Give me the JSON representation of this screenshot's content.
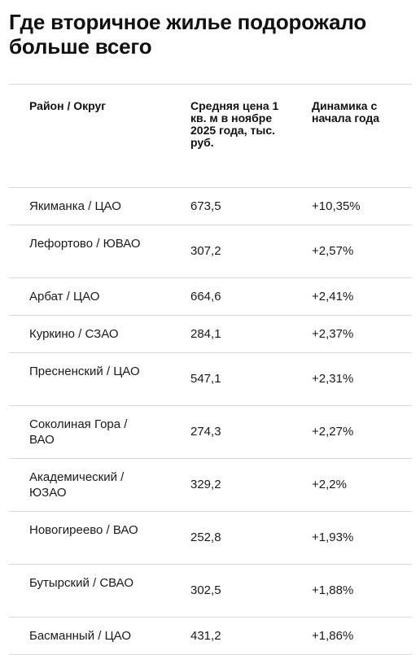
{
  "title": "Где вторичное жилье подорожало больше всего",
  "table": {
    "headers": [
      "Район / Округ",
      "Средняя цена 1 кв. м в ноябре 2025 года, тыс. руб.",
      "Динамика с начала года"
    ],
    "rows": [
      {
        "district": "Якиманка / ЦАО",
        "price": "673,5",
        "change": "+10,35%"
      },
      {
        "district": "Лефортово / ЮВАО",
        "price": "307,2",
        "change": "+2,57%"
      },
      {
        "district": "Арбат / ЦАО",
        "price": "664,6",
        "change": "+2,41%"
      },
      {
        "district": "Куркино / СЗАО",
        "price": "284,1",
        "change": "+2,37%"
      },
      {
        "district": "Пресненский / ЦАО",
        "price": "547,1",
        "change": "+2,31%"
      },
      {
        "district": "Соколиная Гора / ВАО",
        "price": "274,3",
        "change": "+2,27%"
      },
      {
        "district": "Академический / ЮЗАО",
        "price": "329,2",
        "change": "+2,2%"
      },
      {
        "district": "Новогиреево / ВАО",
        "price": "252,8",
        "change": "+1,93%"
      },
      {
        "district": "Бутырский / СВАО",
        "price": "302,5",
        "change": "+1,88%"
      },
      {
        "district": "Басманный / ЦАО",
        "price": "431,2",
        "change": "+1,86%"
      }
    ]
  }
}
